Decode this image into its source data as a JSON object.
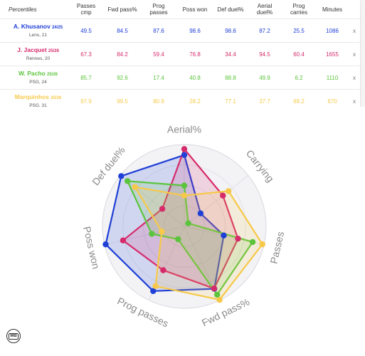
{
  "table": {
    "headers": [
      "Percentiles",
      "Passes\ncmp",
      "Fwd pass%",
      "Prog\npasses",
      "Poss won",
      "Def duel%",
      "Aerial\nduel%",
      "Prog\ncarries",
      "Minutes",
      ""
    ],
    "close_label": "x",
    "players": [
      {
        "name": "A. Khusanov",
        "season": "24/25",
        "club": "Lens, 21",
        "color": "#1f3fd6",
        "values": [
          "49.5",
          "84.5",
          "87.6",
          "98.6",
          "98.6",
          "87.2",
          "25.5",
          "1086"
        ]
      },
      {
        "name": "J. Jacquet",
        "season": "25/26",
        "club": "Rennes, 20",
        "color": "#d62a6a",
        "values": [
          "67.3",
          "84.2",
          "59.4",
          "76.8",
          "34.4",
          "94.5",
          "60.4",
          "1655"
        ]
      },
      {
        "name": "W. Pacho",
        "season": "25/26",
        "club": "PSG, 24",
        "color": "#5cc43c",
        "values": [
          "85.7",
          "92.6",
          "17.4",
          "40.8",
          "88.8",
          "49.9",
          "6.2",
          "1110"
        ]
      },
      {
        "name": "Marquinhos",
        "season": "25/26",
        "club": "PSG, 31",
        "color": "#f6c94a",
        "values": [
          "97.9",
          "99.5",
          "80.9",
          "28.2",
          "77.1",
          "37.7",
          "69.2",
          "670"
        ]
      }
    ]
  },
  "chart_data": {
    "type": "radar",
    "axes": [
      "Aerial%",
      "Carrying",
      "Passes",
      "Fwd pass%",
      "Prog passes",
      "Poss won",
      "Def duel%"
    ],
    "range": [
      0,
      100
    ],
    "series": [
      {
        "name": "A. Khusanov",
        "color": "#1f3fd6",
        "values": [
          87.2,
          25.5,
          49.5,
          84.5,
          87.6,
          98.6,
          98.6
        ]
      },
      {
        "name": "J. Jacquet",
        "color": "#d62a6a",
        "values": [
          94.5,
          60.4,
          67.3,
          84.2,
          59.4,
          76.8,
          34.4
        ]
      },
      {
        "name": "W. Pacho",
        "color": "#5cc43c",
        "values": [
          49.9,
          6.2,
          85.7,
          92.6,
          17.4,
          40.8,
          88.8
        ]
      },
      {
        "name": "Marquinhos",
        "color": "#f6c94a",
        "values": [
          37.7,
          69.2,
          97.9,
          99.5,
          80.9,
          28.2,
          77.1
        ]
      }
    ]
  },
  "logo": {
    "text": "MB"
  }
}
